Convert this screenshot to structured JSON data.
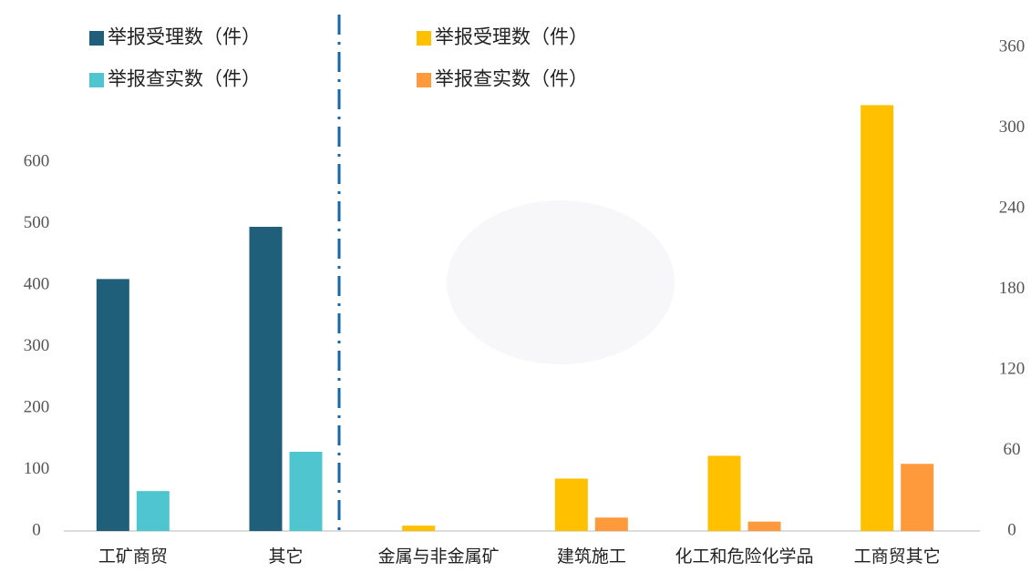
{
  "chart_data": {
    "type": "bar",
    "categories": [
      "工矿商贸",
      "其它",
      "金属与非金属矿",
      "建筑施工",
      "化工和危险化学品",
      "工商贸其它"
    ],
    "series": [
      {
        "name": "举报受理数（件）",
        "color": "#1f5f7a",
        "values": [
          410,
          495,
          null,
          null,
          null,
          null
        ]
      },
      {
        "name": "举报查实数（件）",
        "color": "#4fc6cf",
        "values": [
          65,
          129,
          null,
          null,
          null,
          null
        ]
      },
      {
        "name": "举报受理数（件）",
        "color": "#ffc000",
        "axis": "y2",
        "values": [
          null,
          null,
          4,
          39,
          56,
          317
        ]
      },
      {
        "name": "举报查实数（件）",
        "color": "#ff9a3c",
        "axis": "y2",
        "values": [
          null,
          null,
          0,
          10,
          7,
          50
        ]
      }
    ],
    "ylim": [
      0,
      787
    ],
    "yticks": [
      0,
      100,
      200,
      300,
      400,
      500,
      600
    ],
    "y2lim": [
      0,
      360
    ],
    "y2ticks": [
      0,
      60,
      120,
      180,
      240,
      300,
      360
    ]
  }
}
